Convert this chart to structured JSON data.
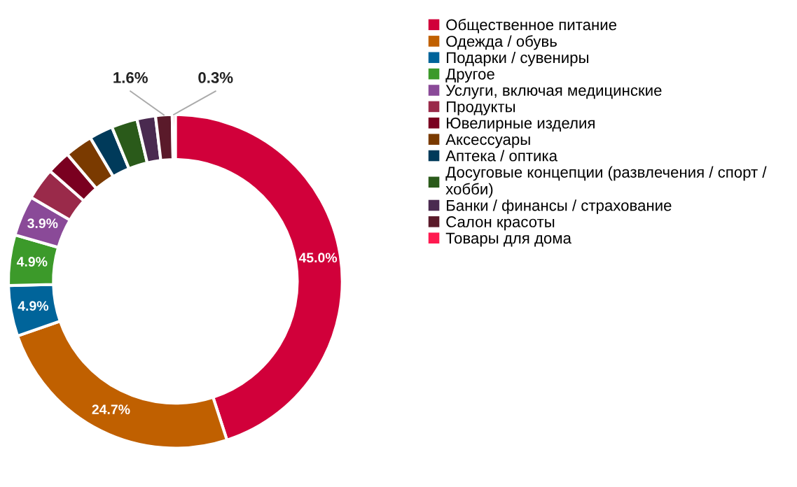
{
  "chart_data": {
    "type": "donut",
    "categories": [
      "Общественное питание",
      "Одежда / обувь",
      "Подарки / сувениры",
      "Другое",
      "Услуги, включая медицинские",
      "Продукты",
      "Ювелирные изделия",
      "Аксессуары",
      "Аптека / оптика",
      "Досуговые концепции (развлечения / спорт / хобби)",
      "Банки / финансы / страхование",
      "Салон красоты",
      "Товары для дома"
    ],
    "values": [
      45.0,
      24.7,
      4.9,
      4.9,
      3.9,
      3.1,
      2.3,
      2.7,
      2.3,
      2.5,
      1.8,
      1.6,
      0.3
    ],
    "value_labels": [
      "45.0%",
      "24.7%",
      "4.9%",
      "4.9%",
      "3.9%",
      null,
      null,
      null,
      null,
      null,
      null,
      "1.6%",
      "0.3%"
    ],
    "colors": [
      "#d1003a",
      "#c06000",
      "#00649a",
      "#3c9a2a",
      "#8a4a98",
      "#9a2a4a",
      "#7a0020",
      "#7a3a00",
      "#003a5a",
      "#2a5a1a",
      "#4a2a50",
      "#5a1a2a",
      "#ff1a50"
    ],
    "legend": "right"
  }
}
